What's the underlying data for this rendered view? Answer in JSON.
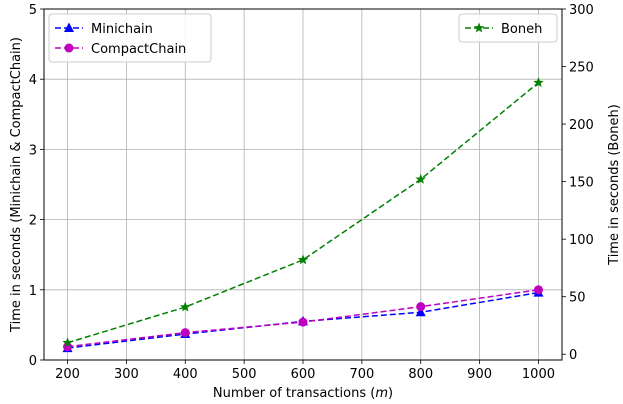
{
  "chart_data": {
    "type": "line",
    "x": [
      200,
      400,
      600,
      800,
      1000
    ],
    "xlim": [
      160,
      1040
    ],
    "x_ticks": [
      200,
      300,
      400,
      500,
      600,
      700,
      800,
      900,
      1000
    ],
    "xlabel_text": "Number of transactions (",
    "xlabel_var": "m",
    "xlabel_close": ")",
    "left_axis": {
      "label": "Time in seconds (Minichain & CompactChain)",
      "ylim": [
        0,
        5
      ],
      "ticks": [
        0,
        1,
        2,
        3,
        4,
        5
      ]
    },
    "right_axis": {
      "label": "Time in seconds (Boneh)",
      "ylim": [
        -5,
        300
      ],
      "ticks": [
        0,
        50,
        100,
        150,
        200,
        250,
        300
      ]
    },
    "grid": true,
    "series": [
      {
        "name": "Minichain",
        "axis": "left",
        "color": "#0000ff",
        "marker": "triangle",
        "values": [
          0.17,
          0.37,
          0.55,
          0.68,
          0.96
        ]
      },
      {
        "name": "CompactChain",
        "axis": "left",
        "color": "#bf00bf",
        "marker": "circle",
        "values": [
          0.19,
          0.39,
          0.54,
          0.76,
          1.0
        ]
      },
      {
        "name": "Boneh",
        "axis": "right",
        "color": "#008000",
        "marker": "star",
        "values": [
          10,
          41,
          82,
          152,
          236
        ]
      }
    ],
    "legends": [
      {
        "placement": "upper-left",
        "entries": [
          "Minichain",
          "CompactChain"
        ]
      },
      {
        "placement": "upper-right",
        "entries": [
          "Boneh"
        ]
      }
    ]
  }
}
